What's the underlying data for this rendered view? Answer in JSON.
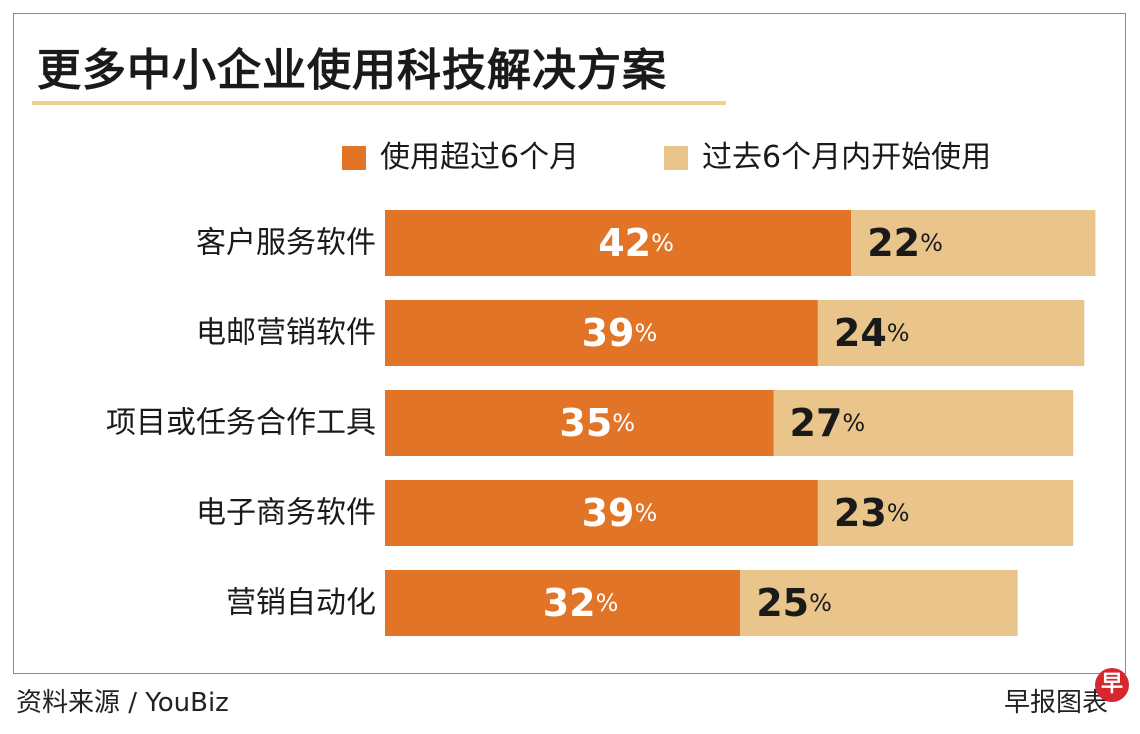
{
  "title": "更多中小企业使用科技解决方案",
  "colors": {
    "series_1": "#e17427",
    "series_2": "#e9c58c",
    "title_rule": "#efd08c",
    "brand": "#d6262e"
  },
  "legend": {
    "items": [
      {
        "label": "使用超过6个月",
        "color": "#e17427"
      },
      {
        "label": "过去6个月内开始使用",
        "color": "#e9c58c"
      }
    ]
  },
  "chart_data": {
    "type": "bar",
    "orientation": "horizontal",
    "stacked": true,
    "title": "更多中小企业使用科技解决方案",
    "categories": [
      "客户服务软件",
      "电邮营销软件",
      "项目或任务合作工具",
      "电子商务软件",
      "营销自动化"
    ],
    "series": [
      {
        "name": "使用超过6个月",
        "values": [
          42,
          39,
          35,
          39,
          32
        ]
      },
      {
        "name": "过去6个月内开始使用",
        "values": [
          22,
          24,
          27,
          23,
          25
        ]
      }
    ],
    "value_suffix": "%",
    "legend_position": "top-right",
    "grid": false
  },
  "footer": {
    "source": "资料来源 / YouBiz",
    "credit": "早报图表",
    "brand_icon": "早"
  }
}
